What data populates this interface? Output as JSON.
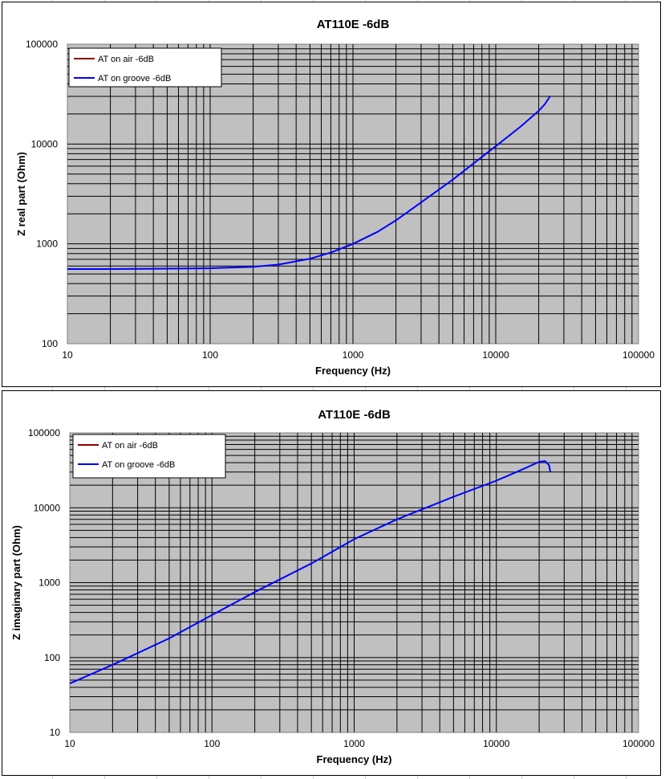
{
  "chart_data": [
    {
      "type": "line",
      "title": "AT110E -6dB",
      "xlabel": "Frequency (Hz)",
      "ylabel": "Z real part (Ohm)",
      "xscale": "log",
      "yscale": "log",
      "xlim": [
        10,
        100000
      ],
      "ylim": [
        100,
        100000
      ],
      "x_ticks": [
        "10",
        "100",
        "1000",
        "10000",
        "100000"
      ],
      "y_ticks": [
        "100",
        "1000",
        "10000",
        "100000"
      ],
      "grid": true,
      "legend_position": "top-left",
      "series": [
        {
          "name": "AT on air -6dB",
          "color": "#8b0000",
          "points": []
        },
        {
          "name": "AT on groove -6dB",
          "color": "#0000ff",
          "points": [
            [
              10,
              560
            ],
            [
              20,
              560
            ],
            [
              50,
              565
            ],
            [
              100,
              570
            ],
            [
              200,
              590
            ],
            [
              300,
              620
            ],
            [
              500,
              710
            ],
            [
              700,
              820
            ],
            [
              1000,
              1000
            ],
            [
              1500,
              1330
            ],
            [
              2000,
              1720
            ],
            [
              3000,
              2600
            ],
            [
              5000,
              4400
            ],
            [
              7000,
              6400
            ],
            [
              10000,
              9500
            ],
            [
              15000,
              15000
            ],
            [
              20000,
              21500
            ],
            [
              22000,
              25000
            ],
            [
              24000,
              30000
            ]
          ]
        }
      ]
    },
    {
      "type": "line",
      "title": "AT110E -6dB",
      "xlabel": "Frequency (Hz)",
      "ylabel": "Z imaginary part (Ohm)",
      "xscale": "log",
      "yscale": "log",
      "xlim": [
        10,
        100000
      ],
      "ylim": [
        10,
        100000
      ],
      "x_ticks": [
        "10",
        "100",
        "1000",
        "10000",
        "100000"
      ],
      "y_ticks": [
        "10",
        "100",
        "1000",
        "10000",
        "100000"
      ],
      "grid": true,
      "legend_position": "top-left",
      "series": [
        {
          "name": "AT on air -6dB",
          "color": "#8b0000",
          "points": []
        },
        {
          "name": "AT on groove -6dB",
          "color": "#0000ff",
          "points": [
            [
              10,
              45
            ],
            [
              20,
              80
            ],
            [
              50,
              180
            ],
            [
              100,
              370
            ],
            [
              200,
              750
            ],
            [
              500,
              1800
            ],
            [
              1000,
              3800
            ],
            [
              2000,
              7000
            ],
            [
              5000,
              14000
            ],
            [
              10000,
              23000
            ],
            [
              15000,
              32000
            ],
            [
              20000,
              41000
            ],
            [
              22000,
              42000
            ],
            [
              23500,
              37000
            ],
            [
              24000,
              30000
            ]
          ]
        }
      ]
    }
  ]
}
